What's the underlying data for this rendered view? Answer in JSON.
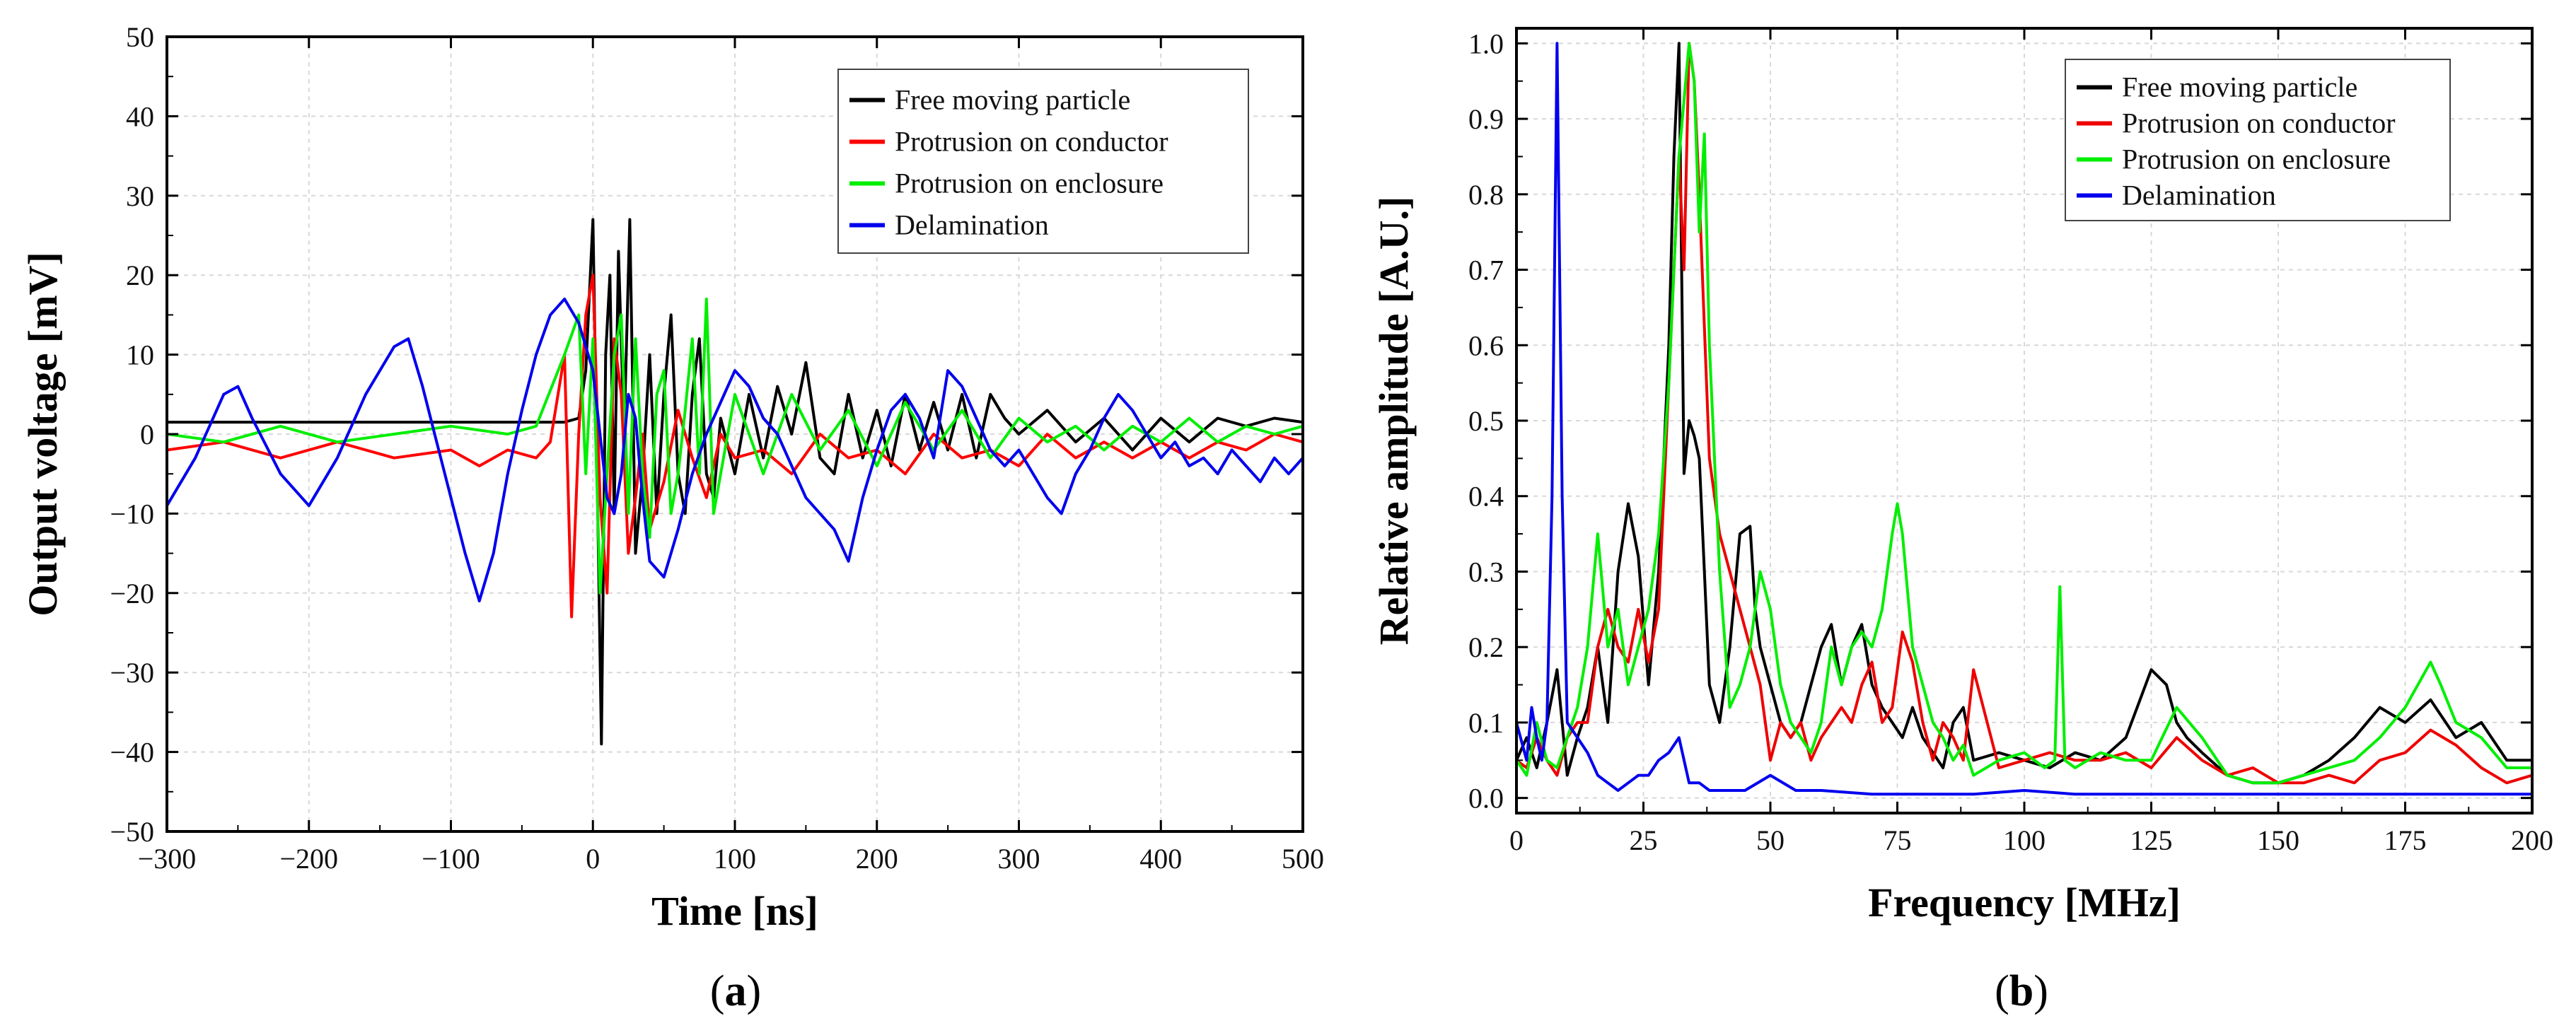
{
  "chart_data": [
    {
      "type": "line",
      "panel_label": "a",
      "xlabel": "Time [ns]",
      "ylabel": "Output voltage [mV]",
      "xlim": [
        -300,
        500
      ],
      "ylim": [
        -50,
        50
      ],
      "xticks": [
        -300,
        -200,
        -100,
        0,
        100,
        200,
        300,
        400,
        500
      ],
      "yticks": [
        -50,
        -40,
        -30,
        -20,
        -10,
        0,
        10,
        20,
        30,
        40,
        50
      ],
      "grid": true,
      "legend_position": "top-right",
      "series": [
        {
          "name": "Free moving particle",
          "color": "#000000",
          "x": [
            -300,
            -20,
            -10,
            -5,
            0,
            3,
            6,
            9,
            12,
            15,
            18,
            22,
            26,
            30,
            35,
            40,
            45,
            50,
            55,
            60,
            65,
            70,
            75,
            80,
            85,
            90,
            100,
            110,
            120,
            130,
            140,
            150,
            160,
            170,
            180,
            190,
            200,
            210,
            220,
            230,
            240,
            250,
            260,
            270,
            280,
            290,
            300,
            320,
            340,
            360,
            380,
            400,
            420,
            440,
            460,
            480,
            500
          ],
          "y": [
            1.5,
            1.5,
            2,
            8,
            27,
            -5,
            -39,
            10,
            20,
            -10,
            23,
            0,
            27,
            -15,
            -5,
            10,
            -10,
            5,
            15,
            -5,
            -10,
            5,
            12,
            -5,
            -8,
            2,
            -5,
            5,
            -3,
            6,
            0,
            9,
            -3,
            -5,
            5,
            -3,
            3,
            -4,
            5,
            -2,
            4,
            -2,
            5,
            -3,
            5,
            2,
            0,
            3,
            -1,
            2,
            -2,
            2,
            -1,
            2,
            1,
            2,
            1.5
          ]
        },
        {
          "name": "Protrusion on conductor",
          "color": "#ff0000",
          "x": [
            -300,
            -260,
            -220,
            -180,
            -140,
            -100,
            -80,
            -60,
            -40,
            -30,
            -20,
            -15,
            -10,
            -5,
            0,
            5,
            10,
            15,
            20,
            25,
            30,
            35,
            40,
            50,
            60,
            70,
            80,
            90,
            100,
            120,
            140,
            160,
            180,
            200,
            220,
            240,
            260,
            280,
            300,
            320,
            340,
            360,
            380,
            400,
            420,
            440,
            460,
            480,
            500
          ],
          "y": [
            -2,
            -1,
            -3,
            -1,
            -3,
            -2,
            -4,
            -2,
            -3,
            -1,
            10,
            -23,
            0,
            15,
            20,
            -8,
            -20,
            12,
            5,
            -15,
            -8,
            0,
            -12,
            -6,
            3,
            -3,
            -8,
            0,
            -3,
            -2,
            -5,
            0,
            -3,
            -2,
            -5,
            0,
            -3,
            -2,
            -4,
            0,
            -3,
            -1,
            -3,
            -1,
            -3,
            -1,
            -2,
            0,
            -1
          ]
        },
        {
          "name": "Protrusion on enclosure",
          "color": "#00ee00",
          "x": [
            -300,
            -260,
            -220,
            -180,
            -140,
            -100,
            -60,
            -40,
            -20,
            -10,
            -5,
            0,
            5,
            10,
            15,
            20,
            25,
            30,
            35,
            40,
            45,
            50,
            55,
            60,
            65,
            70,
            75,
            80,
            85,
            90,
            100,
            110,
            120,
            140,
            160,
            180,
            200,
            220,
            240,
            260,
            280,
            300,
            320,
            340,
            360,
            380,
            400,
            420,
            440,
            460,
            480,
            500
          ],
          "y": [
            0,
            -1,
            1,
            -1,
            0,
            1,
            0,
            1,
            10,
            15,
            -5,
            12,
            -20,
            -5,
            10,
            15,
            -10,
            12,
            -5,
            -13,
            5,
            8,
            -10,
            -5,
            3,
            12,
            -5,
            17,
            -10,
            -5,
            5,
            0,
            -5,
            5,
            -2,
            3,
            -4,
            4,
            -2,
            3,
            -3,
            2,
            -1,
            1,
            -2,
            1,
            -1,
            2,
            -1,
            1,
            0,
            1
          ]
        },
        {
          "name": "Delamination",
          "color": "#0000ee",
          "x": [
            -300,
            -280,
            -260,
            -250,
            -240,
            -220,
            -200,
            -180,
            -160,
            -140,
            -130,
            -120,
            -110,
            -100,
            -90,
            -80,
            -70,
            -60,
            -50,
            -40,
            -30,
            -20,
            -10,
            0,
            5,
            10,
            15,
            20,
            25,
            30,
            35,
            40,
            50,
            60,
            70,
            80,
            90,
            100,
            110,
            120,
            130,
            140,
            150,
            160,
            170,
            180,
            190,
            200,
            210,
            220,
            230,
            240,
            250,
            260,
            270,
            280,
            290,
            300,
            310,
            320,
            330,
            340,
            350,
            360,
            370,
            380,
            390,
            400,
            410,
            420,
            430,
            440,
            450,
            460,
            470,
            480,
            490,
            500
          ],
          "y": [
            -9,
            -3,
            5,
            6,
            2,
            -5,
            -9,
            -3,
            5,
            11,
            12,
            6,
            -1,
            -8,
            -15,
            -21,
            -15,
            -5,
            3,
            10,
            15,
            17,
            14,
            8,
            0,
            -8,
            -10,
            -5,
            5,
            2,
            -8,
            -16,
            -18,
            -12,
            -5,
            0,
            4,
            8,
            6,
            2,
            0,
            -4,
            -8,
            -10,
            -12,
            -16,
            -8,
            -2,
            3,
            5,
            2,
            -3,
            8,
            6,
            2,
            -2,
            -4,
            -2,
            -5,
            -8,
            -10,
            -5,
            -2,
            2,
            5,
            3,
            0,
            -3,
            -1,
            -4,
            -3,
            -5,
            -2,
            -4,
            -6,
            -3,
            -5,
            -3
          ]
        }
      ]
    },
    {
      "type": "line",
      "panel_label": "b",
      "xlabel": "Frequency [MHz]",
      "ylabel": "Relative amplitude [A.U.]",
      "xlim": [
        0,
        200
      ],
      "ylim": [
        -0.02,
        1.02
      ],
      "xticks": [
        0,
        25,
        50,
        75,
        100,
        125,
        150,
        175,
        200
      ],
      "yticks": [
        0.0,
        0.1,
        0.2,
        0.3,
        0.4,
        0.5,
        0.6,
        0.7,
        0.8,
        0.9,
        1.0
      ],
      "grid": true,
      "legend_position": "top-right",
      "series": [
        {
          "name": "Free moving particle",
          "color": "#000000",
          "x": [
            0,
            2,
            4,
            6,
            8,
            10,
            12,
            14,
            16,
            18,
            20,
            22,
            24,
            26,
            28,
            30,
            31,
            32,
            33,
            34,
            35,
            36,
            37,
            38,
            40,
            42,
            44,
            46,
            47,
            48,
            50,
            52,
            54,
            56,
            58,
            60,
            62,
            64,
            66,
            68,
            70,
            72,
            74,
            76,
            78,
            80,
            82,
            84,
            86,
            88,
            90,
            95,
            100,
            105,
            110,
            115,
            120,
            125,
            128,
            130,
            132,
            135,
            140,
            145,
            150,
            155,
            160,
            165,
            170,
            175,
            180,
            185,
            190,
            195,
            200
          ],
          "y": [
            0.05,
            0.08,
            0.04,
            0.1,
            0.17,
            0.03,
            0.08,
            0.12,
            0.2,
            0.1,
            0.3,
            0.39,
            0.32,
            0.15,
            0.3,
            0.6,
            0.85,
            1.0,
            0.43,
            0.5,
            0.48,
            0.45,
            0.3,
            0.15,
            0.1,
            0.2,
            0.35,
            0.36,
            0.25,
            0.2,
            0.15,
            0.1,
            0.08,
            0.1,
            0.15,
            0.2,
            0.23,
            0.15,
            0.2,
            0.23,
            0.15,
            0.12,
            0.1,
            0.08,
            0.12,
            0.08,
            0.06,
            0.04,
            0.1,
            0.12,
            0.05,
            0.06,
            0.05,
            0.04,
            0.06,
            0.05,
            0.08,
            0.17,
            0.15,
            0.1,
            0.08,
            0.06,
            0.03,
            0.02,
            0.02,
            0.03,
            0.05,
            0.08,
            0.12,
            0.1,
            0.13,
            0.08,
            0.1,
            0.05,
            0.05
          ]
        },
        {
          "name": "Protrusion on conductor",
          "color": "#ee0000",
          "x": [
            0,
            2,
            4,
            6,
            8,
            10,
            12,
            14,
            16,
            18,
            20,
            22,
            24,
            26,
            28,
            30,
            32,
            33,
            34,
            35,
            36,
            38,
            40,
            42,
            44,
            46,
            48,
            50,
            52,
            54,
            56,
            58,
            60,
            62,
            64,
            66,
            68,
            70,
            72,
            74,
            76,
            78,
            80,
            82,
            84,
            86,
            88,
            90,
            95,
            100,
            105,
            110,
            115,
            120,
            125,
            130,
            135,
            140,
            145,
            150,
            155,
            160,
            165,
            170,
            175,
            180,
            185,
            190,
            195,
            200
          ],
          "y": [
            0.05,
            0.04,
            0.08,
            0.05,
            0.03,
            0.08,
            0.1,
            0.1,
            0.2,
            0.25,
            0.2,
            0.18,
            0.25,
            0.18,
            0.25,
            0.55,
            0.85,
            0.7,
            1.0,
            0.95,
            0.8,
            0.45,
            0.35,
            0.3,
            0.25,
            0.2,
            0.15,
            0.05,
            0.1,
            0.08,
            0.1,
            0.05,
            0.08,
            0.1,
            0.12,
            0.1,
            0.15,
            0.18,
            0.1,
            0.12,
            0.22,
            0.18,
            0.1,
            0.05,
            0.1,
            0.08,
            0.05,
            0.17,
            0.04,
            0.05,
            0.06,
            0.05,
            0.05,
            0.06,
            0.04,
            0.08,
            0.05,
            0.03,
            0.04,
            0.02,
            0.02,
            0.03,
            0.02,
            0.05,
            0.06,
            0.09,
            0.07,
            0.04,
            0.02,
            0.03
          ]
        },
        {
          "name": "Protrusion on enclosure",
          "color": "#00ee00",
          "x": [
            0,
            2,
            4,
            6,
            8,
            10,
            12,
            14,
            16,
            18,
            20,
            22,
            24,
            26,
            28,
            30,
            32,
            34,
            35,
            36,
            37,
            38,
            40,
            42,
            44,
            46,
            48,
            50,
            52,
            54,
            56,
            58,
            60,
            62,
            64,
            66,
            68,
            70,
            72,
            74,
            75,
            76,
            78,
            80,
            82,
            84,
            86,
            88,
            90,
            95,
            100,
            104,
            106,
            107,
            108,
            110,
            115,
            120,
            125,
            130,
            135,
            140,
            145,
            150,
            155,
            160,
            165,
            170,
            175,
            180,
            182,
            185,
            190,
            195,
            200
          ],
          "y": [
            0.05,
            0.03,
            0.1,
            0.05,
            0.04,
            0.08,
            0.12,
            0.2,
            0.35,
            0.2,
            0.25,
            0.15,
            0.2,
            0.25,
            0.35,
            0.55,
            0.85,
            1.0,
            0.95,
            0.75,
            0.88,
            0.6,
            0.3,
            0.12,
            0.15,
            0.2,
            0.3,
            0.25,
            0.15,
            0.1,
            0.08,
            0.06,
            0.1,
            0.2,
            0.15,
            0.2,
            0.22,
            0.2,
            0.25,
            0.35,
            0.39,
            0.35,
            0.2,
            0.15,
            0.1,
            0.08,
            0.05,
            0.07,
            0.03,
            0.05,
            0.06,
            0.04,
            0.05,
            0.28,
            0.05,
            0.04,
            0.06,
            0.05,
            0.05,
            0.12,
            0.08,
            0.03,
            0.02,
            0.02,
            0.03,
            0.04,
            0.05,
            0.08,
            0.12,
            0.18,
            0.15,
            0.1,
            0.08,
            0.04,
            0.04
          ]
        },
        {
          "name": "Delamination",
          "color": "#0000ee",
          "x": [
            0,
            2,
            3,
            4,
            5,
            6,
            7,
            8,
            9,
            10,
            12,
            14,
            16,
            18,
            20,
            22,
            24,
            26,
            28,
            30,
            32,
            34,
            36,
            38,
            40,
            45,
            50,
            55,
            60,
            70,
            80,
            90,
            100,
            110,
            120,
            130,
            140,
            150,
            160,
            170,
            180,
            190,
            200
          ],
          "y": [
            0.1,
            0.05,
            0.12,
            0.08,
            0.05,
            0.1,
            0.4,
            1.0,
            0.4,
            0.1,
            0.08,
            0.06,
            0.03,
            0.02,
            0.01,
            0.02,
            0.03,
            0.03,
            0.05,
            0.06,
            0.08,
            0.02,
            0.02,
            0.01,
            0.01,
            0.01,
            0.03,
            0.01,
            0.01,
            0.005,
            0.005,
            0.005,
            0.01,
            0.005,
            0.005,
            0.005,
            0.005,
            0.005,
            0.005,
            0.005,
            0.005,
            0.005,
            0.005
          ]
        }
      ]
    }
  ]
}
